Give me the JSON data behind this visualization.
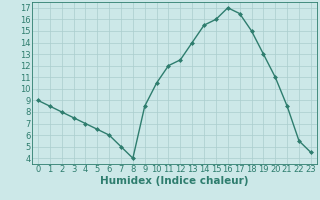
{
  "x": [
    0,
    1,
    2,
    3,
    4,
    5,
    6,
    7,
    8,
    9,
    10,
    11,
    12,
    13,
    14,
    15,
    16,
    17,
    18,
    19,
    20,
    21,
    22,
    23
  ],
  "y": [
    9,
    8.5,
    8,
    7.5,
    7,
    6.5,
    6,
    5,
    4,
    8.5,
    10.5,
    12,
    12.5,
    14,
    15.5,
    16,
    17,
    16.5,
    15,
    13,
    11,
    8.5,
    5.5,
    4.5
  ],
  "line_color": "#2e7d6e",
  "marker": "D",
  "marker_size": 2,
  "bg_color": "#cce8e8",
  "grid_color": "#aacece",
  "xlim": [
    -0.5,
    23.5
  ],
  "ylim": [
    3.5,
    17.5
  ],
  "yticks": [
    4,
    5,
    6,
    7,
    8,
    9,
    10,
    11,
    12,
    13,
    14,
    15,
    16,
    17
  ],
  "xticks": [
    0,
    1,
    2,
    3,
    4,
    5,
    6,
    7,
    8,
    9,
    10,
    11,
    12,
    13,
    14,
    15,
    16,
    17,
    18,
    19,
    20,
    21,
    22,
    23
  ],
  "xlabel": "Humidex (Indice chaleur)",
  "xlabel_fontsize": 7.5,
  "tick_fontsize": 6,
  "linewidth": 1.0
}
